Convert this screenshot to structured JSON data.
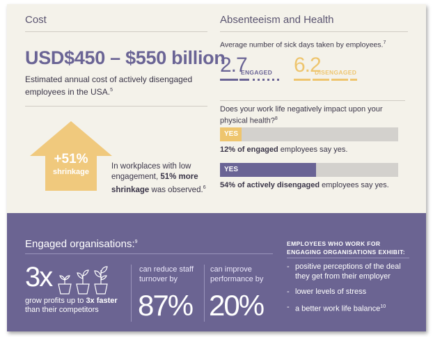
{
  "cost": {
    "title": "Cost",
    "amount": "USD$450 – $550 billion",
    "description": "Estimated annual cost of actively disengaged employees in the USA.",
    "description_ref": "5",
    "shrink_percent": "+51%",
    "shrink_label": "shrinkage",
    "shrink_text_pre": "In workplaces with low engagement, ",
    "shrink_text_bold": "51% more shrinkage",
    "shrink_text_post": " was observed.",
    "shrink_ref": "6",
    "arrow_color": "#f0c97d"
  },
  "absenteeism": {
    "title": "Absenteeism and Health",
    "sick_days_label": "Average number of sick days taken by employees.",
    "sick_days_ref": "7",
    "engaged_value": "2.7",
    "engaged_label": "ENGAGED",
    "engaged_color": "#6a6495",
    "disengaged_value": "6.2",
    "disengaged_label": "DISENGAGED",
    "disengaged_color": "#eec56e",
    "question": "Does your work life negatively impact upon your physical health?",
    "question_ref": "8",
    "bars": [
      {
        "label": "YES",
        "percent": 12,
        "color": "#eec56e",
        "caption_bold": "12% of engaged",
        "caption_rest": " employees say yes."
      },
      {
        "label": "YES",
        "percent": 54,
        "color": "#6a6495",
        "caption_bold": "54% of actively disengaged",
        "caption_rest": " employees say yes."
      }
    ]
  },
  "engaged_orgs": {
    "title": "Engaged organisations:",
    "title_ref": "9",
    "multiplier": "3x",
    "grow_text_pre": "grow profits up to ",
    "grow_text_bold": "3x faster",
    "grow_text_post": " than their competitors",
    "turnover_label": "can reduce staff turnover by",
    "turnover_value": "87%",
    "performance_label": "can improve performance by",
    "performance_value": "20%",
    "icon": "plant-pots-icon"
  },
  "exhibit": {
    "title": "EMPLOYEES WHO WORK FOR ENGAGING ORGANISATIONS EXHIBIT:",
    "items": [
      {
        "dash": "-",
        "text": "positive perceptions of the deal they get from their employer"
      },
      {
        "dash": "-",
        "text": "lower levels of stress"
      },
      {
        "dash": "-",
        "text": "a better work life balance",
        "ref": "10"
      }
    ]
  }
}
